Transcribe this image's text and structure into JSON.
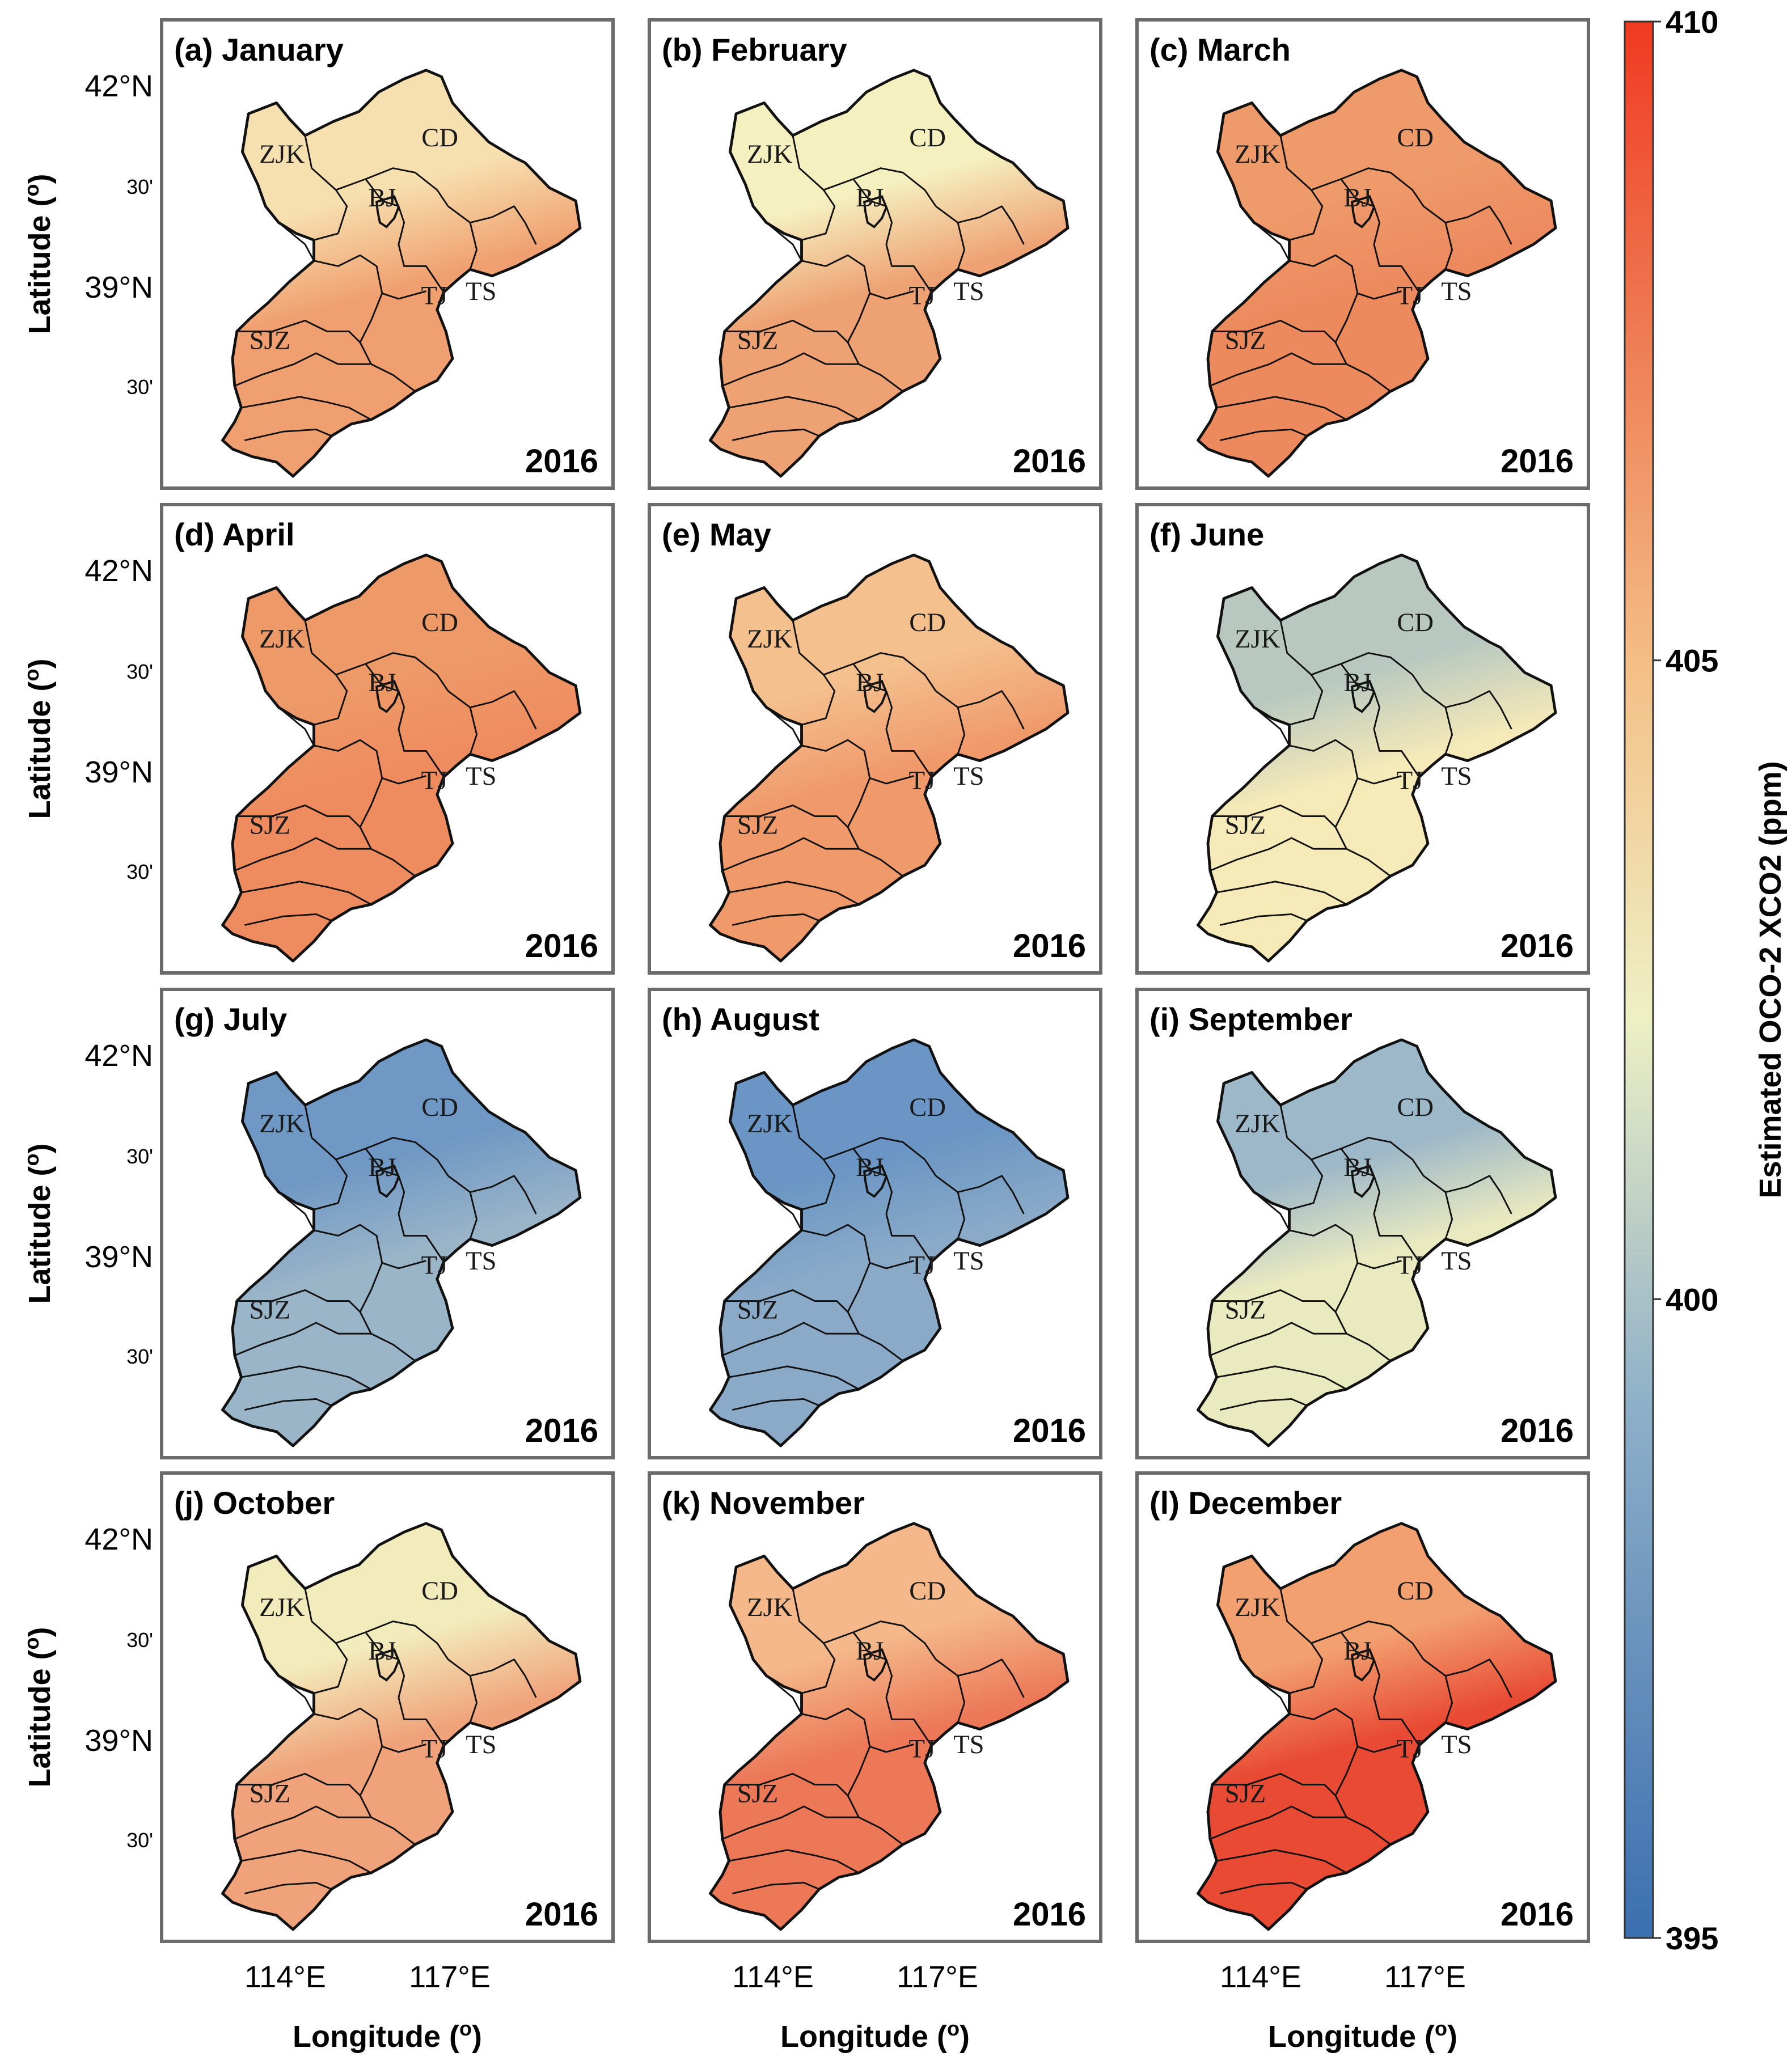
{
  "figure": {
    "year": "2016",
    "panels": [
      {
        "title": "(a) January",
        "tint": "#f0a070",
        "north": "#f7e0b0"
      },
      {
        "title": "(b) February",
        "tint": "#eea274",
        "north": "#f5f0c0"
      },
      {
        "title": "(c) March",
        "tint": "#ec8a5e",
        "north": "#ee9a6a"
      },
      {
        "title": "(d) April",
        "tint": "#ee8c60",
        "north": "#ee9a68"
      },
      {
        "title": "(e) May",
        "tint": "#f09a6c",
        "north": "#f4c08e"
      },
      {
        "title": "(f) June",
        "tint": "#f6eab8",
        "north": "#b8c8c0"
      },
      {
        "title": "(g) July",
        "tint": "#9ab4c8",
        "north": "#6f98c4"
      },
      {
        "title": "(h) August",
        "tint": "#8aaac8",
        "north": "#6a95c4"
      },
      {
        "title": "(i) September",
        "tint": "#eaeac0",
        "north": "#9db8c8"
      },
      {
        "title": "(j) October",
        "tint": "#f0a27a",
        "north": "#f2ecbc"
      },
      {
        "title": "(k) November",
        "tint": "#ec7858",
        "north": "#f4b88a"
      },
      {
        "title": "(l) December",
        "tint": "#e84a34",
        "north": "#f2a070"
      }
    ],
    "cities": [
      "ZJK",
      "CD",
      "BJ",
      "TJ",
      "TS",
      "SJZ"
    ],
    "lat_major_ticks": [
      "42°N",
      "39°N"
    ],
    "lat_minor_ticks": [
      "30'",
      "30'"
    ],
    "lon_ticks": [
      "114°E",
      "117°E"
    ],
    "y_axis_title": "Latitude (",
    "x_axis_title": "Longitude (",
    "degree_symbol": "o",
    "close_paren": ")"
  },
  "colorbar": {
    "min": 395,
    "max": 410,
    "ticks": [
      "410",
      "405",
      "400",
      "395"
    ],
    "label": "Estimated OCO-2 XCO2 (ppm)",
    "colors": [
      "#3b6fb0",
      "#8fb0c8",
      "#eef0c4",
      "#f4c088",
      "#ee7a52",
      "#f03a22"
    ]
  }
}
